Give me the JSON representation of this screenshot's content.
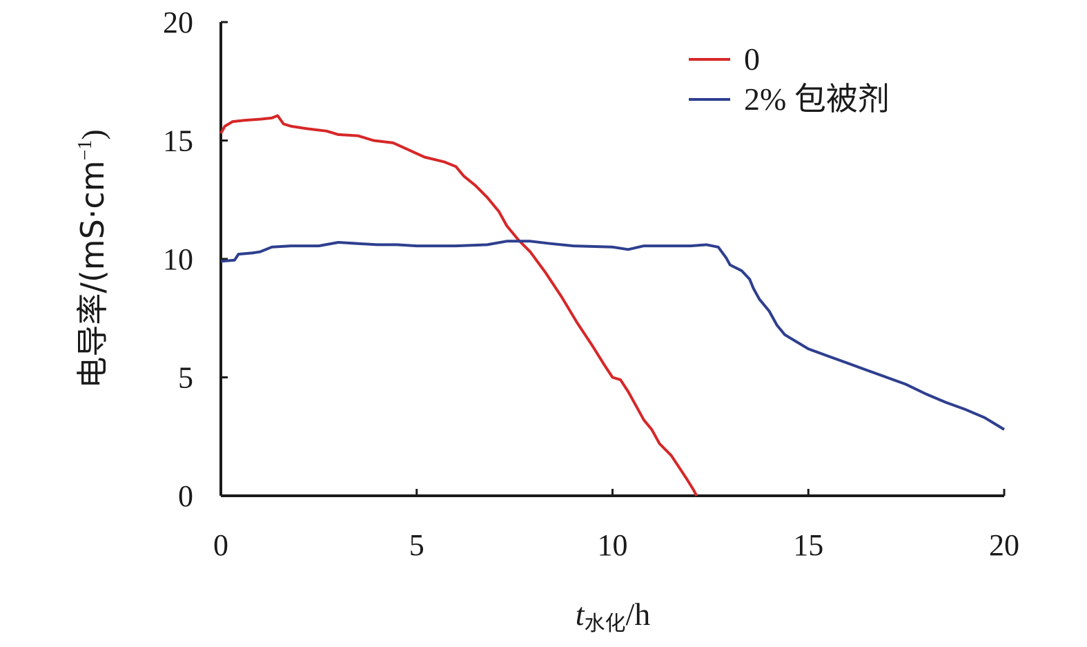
{
  "chart_data": {
    "type": "line",
    "title": "",
    "xlabel": {
      "symbol": "t",
      "subscript": "水化",
      "unit": "/h"
    },
    "ylabel": {
      "text": "电导率/(mS·cm",
      "superscript": "−1",
      "close": ")"
    },
    "xlim": [
      0,
      20
    ],
    "ylim": [
      0,
      20
    ],
    "xticks": [
      "0",
      "5",
      "10",
      "15",
      "20"
    ],
    "yticks": [
      "0",
      "5",
      "10",
      "15",
      "20"
    ],
    "grid": false,
    "legend_position": "top-right",
    "series": [
      {
        "name": "0",
        "color": "#d62728",
        "points": [
          [
            0.0,
            15.3
          ],
          [
            0.1,
            15.6
          ],
          [
            0.3,
            15.8
          ],
          [
            0.6,
            15.85
          ],
          [
            1.0,
            15.9
          ],
          [
            1.3,
            15.95
          ],
          [
            1.45,
            16.05
          ],
          [
            1.6,
            15.7
          ],
          [
            1.8,
            15.6
          ],
          [
            2.2,
            15.5
          ],
          [
            2.7,
            15.4
          ],
          [
            3.0,
            15.25
          ],
          [
            3.5,
            15.2
          ],
          [
            3.9,
            15.0
          ],
          [
            4.4,
            14.9
          ],
          [
            4.8,
            14.6
          ],
          [
            5.2,
            14.3
          ],
          [
            5.7,
            14.1
          ],
          [
            6.0,
            13.9
          ],
          [
            6.2,
            13.5
          ],
          [
            6.5,
            13.1
          ],
          [
            6.8,
            12.6
          ],
          [
            7.1,
            12.0
          ],
          [
            7.3,
            11.4
          ],
          [
            7.6,
            10.8
          ],
          [
            7.9,
            10.3
          ],
          [
            8.3,
            9.4
          ],
          [
            8.7,
            8.4
          ],
          [
            9.1,
            7.3
          ],
          [
            9.5,
            6.3
          ],
          [
            9.8,
            5.5
          ],
          [
            10.0,
            5.0
          ],
          [
            10.2,
            4.9
          ],
          [
            10.4,
            4.4
          ],
          [
            10.6,
            3.8
          ],
          [
            10.8,
            3.2
          ],
          [
            11.0,
            2.8
          ],
          [
            11.2,
            2.2
          ],
          [
            11.5,
            1.7
          ],
          [
            11.7,
            1.2
          ],
          [
            11.9,
            0.7
          ],
          [
            12.05,
            0.3
          ],
          [
            12.15,
            0.0
          ]
        ]
      },
      {
        "name": "2% 包被剂",
        "color": "#2e3f8f",
        "points": [
          [
            0.0,
            9.9
          ],
          [
            0.35,
            9.95
          ],
          [
            0.45,
            10.2
          ],
          [
            0.8,
            10.25
          ],
          [
            1.0,
            10.3
          ],
          [
            1.3,
            10.5
          ],
          [
            1.8,
            10.55
          ],
          [
            2.5,
            10.55
          ],
          [
            3.0,
            10.7
          ],
          [
            3.5,
            10.65
          ],
          [
            4.0,
            10.6
          ],
          [
            4.5,
            10.6
          ],
          [
            5.0,
            10.55
          ],
          [
            6.0,
            10.55
          ],
          [
            6.8,
            10.6
          ],
          [
            7.3,
            10.75
          ],
          [
            7.9,
            10.75
          ],
          [
            8.4,
            10.65
          ],
          [
            9.0,
            10.55
          ],
          [
            10.0,
            10.5
          ],
          [
            10.4,
            10.4
          ],
          [
            10.8,
            10.55
          ],
          [
            11.5,
            10.55
          ],
          [
            12.0,
            10.55
          ],
          [
            12.4,
            10.6
          ],
          [
            12.7,
            10.5
          ],
          [
            12.9,
            10.05
          ],
          [
            13.0,
            9.75
          ],
          [
            13.3,
            9.5
          ],
          [
            13.5,
            9.15
          ],
          [
            13.6,
            8.75
          ],
          [
            13.75,
            8.3
          ],
          [
            14.0,
            7.8
          ],
          [
            14.2,
            7.2
          ],
          [
            14.4,
            6.8
          ],
          [
            14.7,
            6.5
          ],
          [
            15.0,
            6.2
          ],
          [
            15.5,
            5.9
          ],
          [
            16.0,
            5.6
          ],
          [
            16.5,
            5.3
          ],
          [
            17.0,
            5.0
          ],
          [
            17.5,
            4.7
          ],
          [
            18.0,
            4.3
          ],
          [
            18.5,
            3.95
          ],
          [
            19.0,
            3.65
          ],
          [
            19.5,
            3.3
          ],
          [
            19.8,
            3.0
          ],
          [
            20.0,
            2.8
          ]
        ]
      }
    ]
  }
}
